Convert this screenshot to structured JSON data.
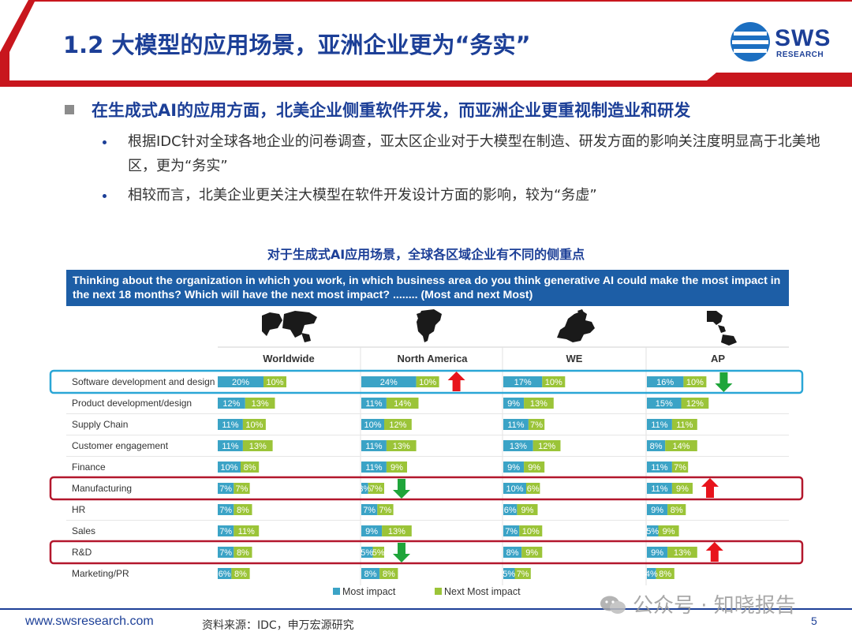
{
  "slide": {
    "title": "1.2 大模型的应用场景，亚洲企业更为“务实”",
    "logo_text": "SWS",
    "logo_sub": "RESEARCH",
    "main_bullet": "在生成式AI的应用方面，北美企业侧重软件开发，而亚洲企业更重视制造业和研发",
    "sub_bullets": [
      "根据IDC针对全球各地企业的问卷调查，亚太区企业对于大模型在制造、研发方面的影响关注度明显高于北美地区，更为“务实”",
      "相较而言，北美企业更关注大模型在软件开发设计方面的影响，较为“务虚”"
    ],
    "chart_heading": "对于生成式AI应用场景，全球各区域企业有不同的侧重点",
    "question": "Thinking about the organization in which you work, in which business area do you think generative AI could make the most impact in the next 18 months? Which will have the next most impact? ........ (Most and next Most)",
    "footer_url": "www.swsresearch.com",
    "footer_source": "资料来源：IDC，申万宏源研究",
    "page_number": "5",
    "watermark": "公众号 · 知晓报告"
  },
  "colors": {
    "brand_blue": "#1c3f97",
    "header_red": "#c8161d",
    "most_impact": "#3ba3c6",
    "next_most_impact": "#9bc438",
    "highlight_blue": "#2aa6d6",
    "highlight_red": "#b3172c",
    "arrow_up": "#e8141c",
    "arrow_down": "#1fa53a"
  },
  "chart_data": {
    "type": "bar",
    "stacked": true,
    "orientation": "horizontal",
    "panels": [
      "Worldwide",
      "North America",
      "WE",
      "AP"
    ],
    "categories": [
      "Software development and design",
      "Product development/design",
      "Supply Chain",
      "Customer engagement",
      "Finance",
      "Manufacturing",
      "HR",
      "Sales",
      "R&D",
      "Marketing/PR"
    ],
    "series": [
      {
        "name": "Most impact",
        "values": [
          [
            20,
            24,
            17,
            16
          ],
          [
            12,
            11,
            9,
            15
          ],
          [
            11,
            10,
            11,
            11
          ],
          [
            11,
            11,
            13,
            8
          ],
          [
            10,
            11,
            9,
            11
          ],
          [
            7,
            3,
            10,
            11
          ],
          [
            7,
            7,
            6,
            9
          ],
          [
            7,
            9,
            7,
            5
          ],
          [
            7,
            5,
            8,
            9
          ],
          [
            6,
            8,
            5,
            4
          ]
        ]
      },
      {
        "name": "Next Most impact",
        "values": [
          [
            10,
            10,
            10,
            10
          ],
          [
            13,
            14,
            13,
            12
          ],
          [
            10,
            12,
            7,
            11
          ],
          [
            13,
            13,
            12,
            14
          ],
          [
            8,
            9,
            9,
            7
          ],
          [
            7,
            7,
            6,
            9
          ],
          [
            8,
            7,
            9,
            8
          ],
          [
            11,
            13,
            10,
            9
          ],
          [
            8,
            5,
            9,
            13
          ],
          [
            8,
            8,
            7,
            8
          ]
        ]
      }
    ],
    "value_suffix": "%",
    "highlighted_rows": [
      {
        "row": "Software development and design",
        "color": "blue"
      },
      {
        "row": "Manufacturing",
        "color": "red"
      },
      {
        "row": "R&D",
        "color": "red"
      }
    ],
    "arrows": [
      {
        "row": "Software development and design",
        "panel": "North America",
        "direction": "up"
      },
      {
        "row": "Software development and design",
        "panel": "AP",
        "direction": "down"
      },
      {
        "row": "Manufacturing",
        "panel": "North America",
        "direction": "down"
      },
      {
        "row": "Manufacturing",
        "panel": "AP",
        "direction": "up"
      },
      {
        "row": "R&D",
        "panel": "North America",
        "direction": "down"
      },
      {
        "row": "R&D",
        "panel": "AP",
        "direction": "up"
      }
    ],
    "legend_position": "bottom"
  }
}
